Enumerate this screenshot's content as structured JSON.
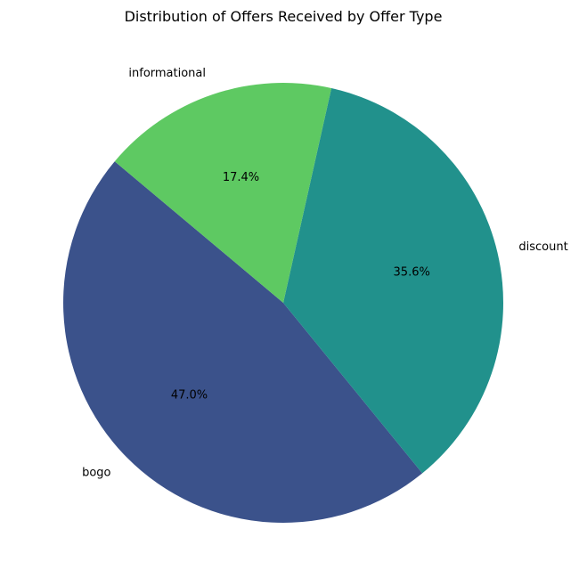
{
  "chart_data": {
    "type": "pie",
    "title": "Distribution of Offers Received by Offer Type",
    "start_angle_deg": 140,
    "direction": "counterclockwise",
    "slices": [
      {
        "label": "bogo",
        "value": 47.0,
        "pct_label": "47.0%",
        "color": "#3b528b"
      },
      {
        "label": "discount",
        "value": 35.6,
        "pct_label": "35.6%",
        "color": "#21918c"
      },
      {
        "label": "informational",
        "value": 17.4,
        "pct_label": "17.4%",
        "color": "#5ec962"
      }
    ],
    "legend": "none"
  }
}
